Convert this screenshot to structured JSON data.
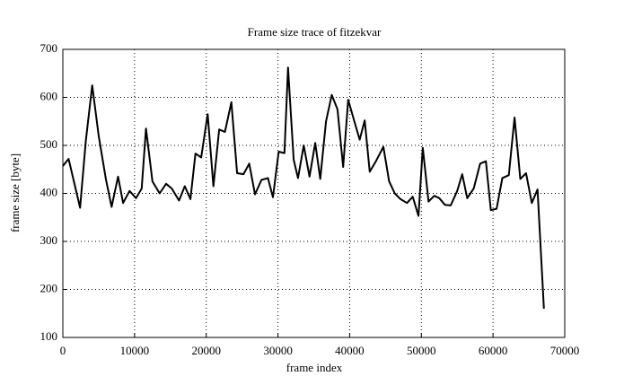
{
  "chart_data": {
    "type": "line",
    "title": "Frame size trace of fitzekvar",
    "x_label": "frame index",
    "y_label": "frame size [byte]",
    "x": [
      0,
      800,
      2400,
      3200,
      4100,
      5000,
      6000,
      6800,
      7700,
      8400,
      9300,
      10200,
      11000,
      11600,
      12500,
      13500,
      14400,
      15200,
      16200,
      17000,
      17800,
      18500,
      19300,
      20200,
      21000,
      21800,
      22600,
      23500,
      24300,
      25200,
      26000,
      26800,
      27700,
      28600,
      29300,
      30100,
      30900,
      31400,
      32200,
      32800,
      33600,
      34400,
      35200,
      35900,
      36700,
      37500,
      38300,
      39100,
      39800,
      40600,
      41400,
      42100,
      42800,
      43700,
      44700,
      45500,
      46300,
      47100,
      48000,
      48800,
      49600,
      50200,
      51000,
      51800,
      52500,
      53300,
      54100,
      55000,
      55700,
      56400,
      57300,
      58200,
      59000,
      59700,
      60500,
      61300,
      62200,
      63000,
      63800,
      64600,
      65400,
      66200,
      67100
    ],
    "values": [
      457,
      472,
      370,
      510,
      625,
      520,
      430,
      372,
      435,
      380,
      405,
      390,
      410,
      535,
      425,
      400,
      420,
      410,
      385,
      415,
      388,
      483,
      475,
      565,
      415,
      533,
      528,
      590,
      442,
      440,
      462,
      398,
      428,
      432,
      392,
      487,
      484,
      662,
      470,
      432,
      500,
      435,
      505,
      430,
      550,
      605,
      575,
      455,
      595,
      553,
      512,
      552,
      445,
      468,
      497,
      425,
      400,
      388,
      380,
      393,
      353,
      495,
      383,
      395,
      390,
      376,
      375,
      405,
      440,
      390,
      410,
      462,
      467,
      365,
      368,
      432,
      438,
      558,
      430,
      442,
      380,
      408,
      160
    ],
    "color": "#000000",
    "xlim": [
      0,
      70000
    ],
    "ylim": [
      100,
      700
    ],
    "xticks": [
      0,
      10000,
      20000,
      30000,
      40000,
      50000,
      60000,
      70000
    ],
    "yticks": [
      100,
      200,
      300,
      400,
      500,
      600,
      700
    ],
    "grid": true
  }
}
